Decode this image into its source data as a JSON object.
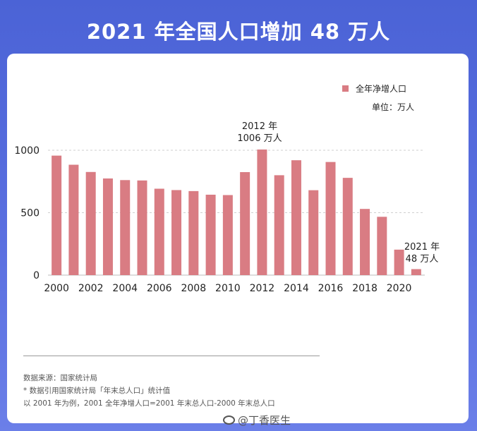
{
  "title": "2021 年全国人口增加 48 万人",
  "legend": {
    "label": "全年净增人口",
    "color": "#d97c83"
  },
  "unit_label": "单位：万人",
  "annotations": {
    "a2012_line1": "2012 年",
    "a2012_line2": "1006 万人",
    "a2021_line1": "2021 年",
    "a2021_line2": "48 万人"
  },
  "notes": [
    "数据来源：国家统计局",
    "* 数据引用国家统计局「年末总人口」统计值",
    "以 2001 年为例，2001 全年净增人口=2001 年末总人口-2000 年末总人口"
  ],
  "watermark": "@丁香医生",
  "chart_data": {
    "type": "bar",
    "title": "2021 年全国人口增加 48 万人",
    "categories": [
      "2000",
      "2001",
      "2002",
      "2003",
      "2004",
      "2005",
      "2006",
      "2007",
      "2008",
      "2009",
      "2010",
      "2011",
      "2012",
      "2013",
      "2014",
      "2015",
      "2016",
      "2017",
      "2018",
      "2019",
      "2020",
      "2021"
    ],
    "series": [
      {
        "name": "全年净增人口",
        "values": [
          957,
          884,
          826,
          774,
          761,
          758,
          692,
          681,
          673,
          644,
          641,
          825,
          1006,
          800,
          920,
          680,
          906,
          779,
          530,
          467,
          204,
          48
        ]
      }
    ],
    "x_tick_labels": [
      "2000",
      "2002",
      "2004",
      "2006",
      "2008",
      "2010",
      "2012",
      "2014",
      "2016",
      "2018",
      "2020"
    ],
    "y_ticks": [
      0,
      500,
      1000
    ],
    "ylim": [
      0,
      1000
    ],
    "xlabel": "",
    "ylabel": "",
    "grid": true,
    "legend_position": "top-right",
    "bar_color": "#d97c83"
  }
}
